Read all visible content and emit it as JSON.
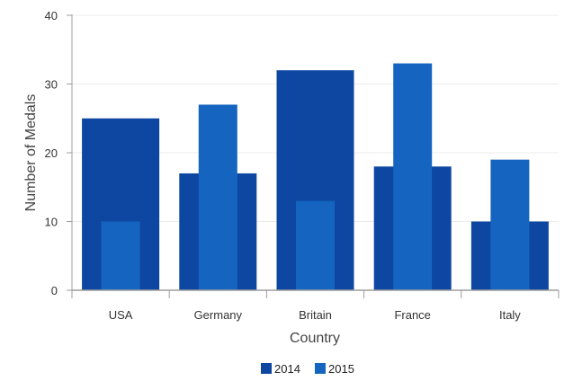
{
  "chart_data": {
    "type": "bar",
    "categories": [
      "USA",
      "Germany",
      "Britain",
      "France",
      "Italy"
    ],
    "series": [
      {
        "name": "2014",
        "values": [
          25,
          17,
          32,
          18,
          10
        ],
        "color": "#0d47a1"
      },
      {
        "name": "2015",
        "values": [
          10,
          27,
          13,
          33,
          19
        ],
        "color": "#1565c0"
      }
    ],
    "title": "",
    "xlabel": "Country",
    "ylabel": "Number of Medals",
    "ylim": [
      0,
      40
    ],
    "yticks": [
      0,
      10,
      20,
      30,
      40
    ],
    "grid": true,
    "legend_position": "bottom",
    "bar_style": "overlapped"
  }
}
